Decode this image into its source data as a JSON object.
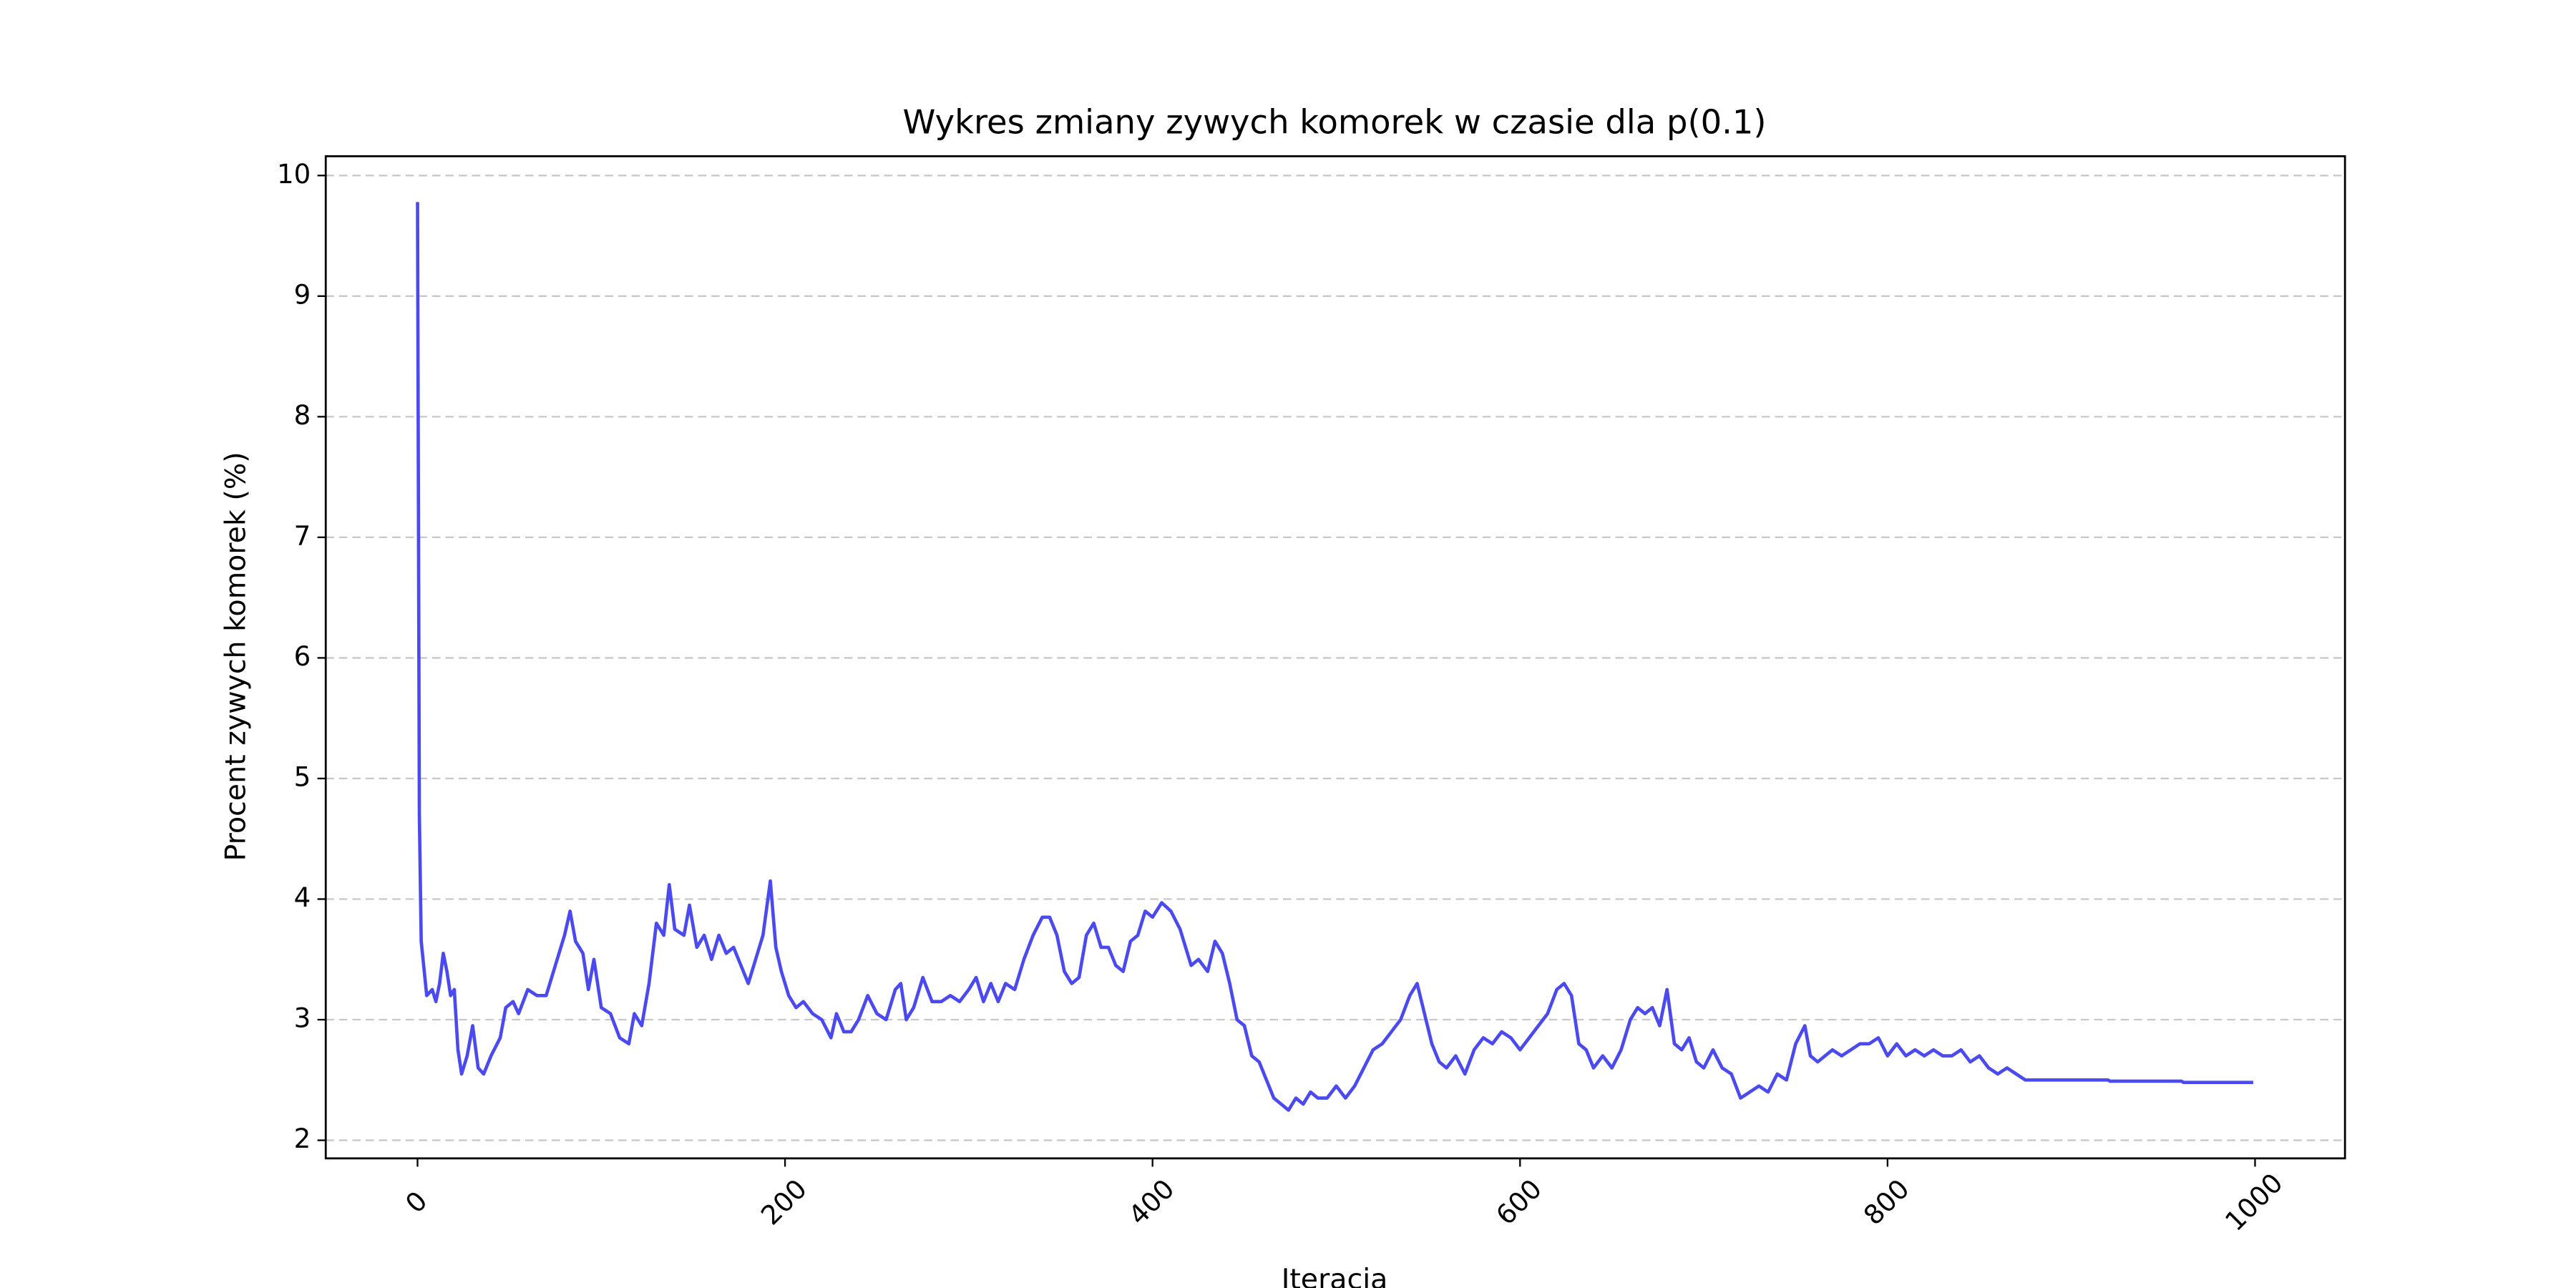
{
  "chart_data": {
    "type": "line",
    "title": "Wykres zmiany zywych komorek w czasie dla p(0.1)",
    "x_label": "Iteracja",
    "y_label": "Procent zywych komorek (%)",
    "xlim": [
      -49.95,
      1048.95
    ],
    "ylim": [
      1.85,
      10.16
    ],
    "xticks": [
      0,
      200,
      400,
      600,
      800,
      1000
    ],
    "yticks": [
      2,
      3,
      4,
      5,
      6,
      7,
      8,
      9,
      10
    ],
    "grid": true,
    "series": [
      {
        "color": "#4a4af0",
        "x": [
          0,
          1,
          2,
          5,
          8,
          10,
          12,
          14,
          16,
          18,
          20,
          22,
          24,
          27,
          30,
          33,
          36,
          40,
          45,
          48,
          52,
          55,
          60,
          65,
          70,
          75,
          80,
          83,
          86,
          90,
          93,
          96,
          100,
          105,
          110,
          115,
          118,
          122,
          126,
          130,
          134,
          137,
          140,
          145,
          148,
          152,
          156,
          160,
          164,
          168,
          172,
          176,
          180,
          184,
          188,
          192,
          195,
          198,
          202,
          206,
          210,
          215,
          220,
          225,
          228,
          232,
          236,
          240,
          245,
          250,
          255,
          260,
          263,
          266,
          270,
          275,
          280,
          285,
          290,
          295,
          300,
          304,
          308,
          312,
          316,
          320,
          325,
          330,
          335,
          340,
          344,
          348,
          352,
          356,
          360,
          364,
          368,
          372,
          376,
          380,
          384,
          388,
          392,
          396,
          400,
          405,
          410,
          415,
          418,
          421,
          425,
          430,
          434,
          438,
          442,
          446,
          450,
          454,
          458,
          462,
          466,
          470,
          474,
          478,
          482,
          486,
          490,
          495,
          500,
          505,
          510,
          515,
          520,
          525,
          530,
          535,
          540,
          544,
          548,
          552,
          556,
          560,
          565,
          570,
          575,
          580,
          585,
          590,
          595,
          600,
          605,
          610,
          615,
          620,
          624,
          628,
          632,
          636,
          640,
          645,
          650,
          655,
          660,
          664,
          668,
          672,
          676,
          680,
          684,
          688,
          692,
          696,
          700,
          705,
          710,
          715,
          720,
          725,
          730,
          735,
          740,
          745,
          750,
          755,
          758,
          762,
          766,
          770,
          775,
          780,
          785,
          790,
          795,
          800,
          805,
          810,
          815,
          820,
          825,
          830,
          835,
          840,
          845,
          850,
          855,
          860,
          865,
          870,
          875,
          920,
          921,
          960,
          961,
          999
        ],
        "values": [
          9.78,
          4.7,
          3.65,
          3.2,
          3.25,
          3.15,
          3.3,
          3.55,
          3.4,
          3.2,
          3.25,
          2.75,
          2.55,
          2.7,
          2.95,
          2.6,
          2.55,
          2.7,
          2.85,
          3.1,
          3.15,
          3.05,
          3.25,
          3.2,
          3.2,
          3.45,
          3.7,
          3.9,
          3.65,
          3.55,
          3.25,
          3.5,
          3.1,
          3.05,
          2.85,
          2.8,
          3.05,
          2.95,
          3.3,
          3.8,
          3.7,
          4.12,
          3.75,
          3.7,
          3.95,
          3.6,
          3.7,
          3.5,
          3.7,
          3.55,
          3.6,
          3.45,
          3.3,
          3.5,
          3.7,
          4.15,
          3.6,
          3.4,
          3.2,
          3.1,
          3.15,
          3.05,
          3.0,
          2.85,
          3.05,
          2.9,
          2.9,
          3.0,
          3.2,
          3.05,
          3.0,
          3.25,
          3.3,
          3.0,
          3.1,
          3.35,
          3.15,
          3.15,
          3.2,
          3.15,
          3.25,
          3.35,
          3.15,
          3.3,
          3.15,
          3.3,
          3.25,
          3.5,
          3.7,
          3.85,
          3.85,
          3.7,
          3.4,
          3.3,
          3.35,
          3.7,
          3.8,
          3.6,
          3.6,
          3.45,
          3.4,
          3.65,
          3.7,
          3.9,
          3.85,
          3.97,
          3.9,
          3.75,
          3.6,
          3.45,
          3.5,
          3.4,
          3.65,
          3.55,
          3.3,
          3.0,
          2.95,
          2.7,
          2.65,
          2.5,
          2.35,
          2.3,
          2.25,
          2.35,
          2.3,
          2.4,
          2.35,
          2.35,
          2.45,
          2.35,
          2.45,
          2.6,
          2.75,
          2.8,
          2.9,
          3.0,
          3.2,
          3.3,
          3.05,
          2.8,
          2.65,
          2.6,
          2.7,
          2.55,
          2.75,
          2.85,
          2.8,
          2.9,
          2.85,
          2.75,
          2.85,
          2.95,
          3.05,
          3.25,
          3.3,
          3.2,
          2.8,
          2.75,
          2.6,
          2.7,
          2.6,
          2.75,
          3.0,
          3.1,
          3.05,
          3.1,
          2.95,
          3.25,
          2.8,
          2.75,
          2.85,
          2.65,
          2.6,
          2.75,
          2.6,
          2.55,
          2.35,
          2.4,
          2.45,
          2.4,
          2.55,
          2.5,
          2.8,
          2.95,
          2.7,
          2.65,
          2.7,
          2.75,
          2.7,
          2.75,
          2.8,
          2.8,
          2.85,
          2.7,
          2.8,
          2.7,
          2.75,
          2.7,
          2.75,
          2.7,
          2.7,
          2.75,
          2.65,
          2.7,
          2.6,
          2.55,
          2.6,
          2.55,
          2.5,
          2.5,
          2.49,
          2.49,
          2.48,
          2.48
        ]
      }
    ]
  }
}
